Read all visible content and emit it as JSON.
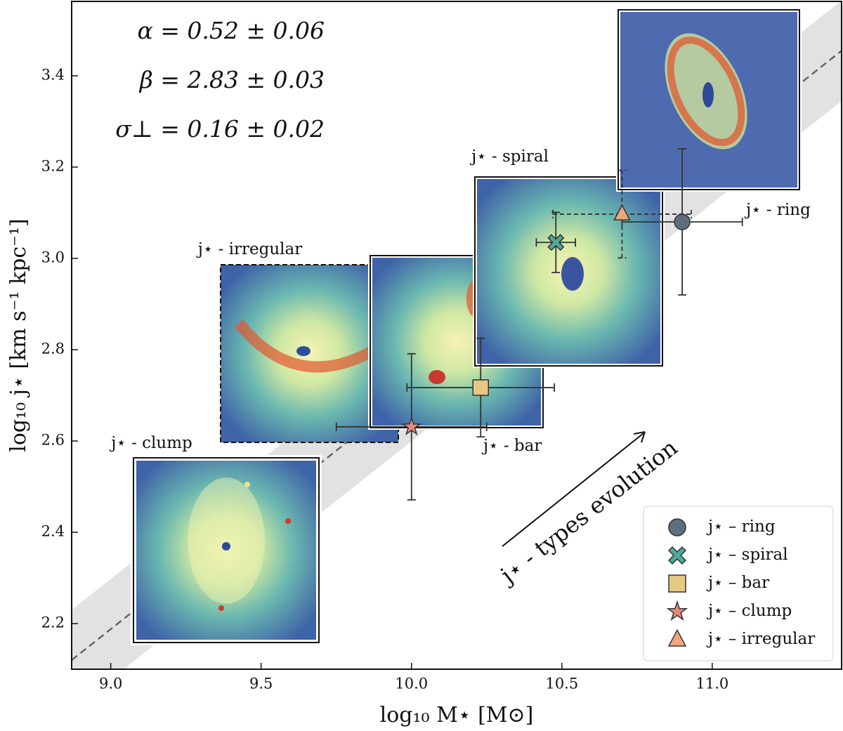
{
  "chart_data": {
    "type": "scatter",
    "xlabel": "log₁₀ M⋆ [M⊙]",
    "ylabel": "log₁₀ j⋆ [km s⁻¹ kpc⁻¹]",
    "xlim": [
      8.87,
      11.43
    ],
    "ylim": [
      2.1,
      3.563
    ],
    "xticks": [
      {
        "value": 9,
        "label": "9.0"
      },
      9.5,
      {
        "value": 10,
        "label": "10.0"
      },
      10.5,
      {
        "value": 11,
        "label": "11.0"
      }
    ],
    "yticks": [
      2.2,
      2.4,
      2.6,
      2.8,
      {
        "value": 3,
        "label": "3.0"
      },
      3.2,
      3.4
    ],
    "annotations": [
      "α = 0.52 ± 0.06",
      "β = 2.83 ± 0.03",
      "σ⊥ = 0.16 ± 0.02"
    ],
    "arrow_label": "j⋆ - types evolution",
    "fit_line": {
      "x": [
        8.87,
        11.43
      ],
      "y": [
        2.12,
        3.455
      ],
      "color": "#666666",
      "band": 0.11
    },
    "image_labels": [
      "j⋆ - ring",
      "j⋆ - spiral",
      "j⋆ - bar",
      "j⋆ - clump",
      "j⋆ - irregular"
    ],
    "legend": "lower right",
    "series": [
      {
        "name": "j⋆ – ring",
        "marker": "circle",
        "color": "#5d6e7c",
        "x": [
          10.9
        ],
        "values": [
          3.08
        ],
        "xerr": [
          0.2
        ],
        "yerr": [
          0.16
        ]
      },
      {
        "name": "j⋆ – spiral",
        "marker": "x",
        "color": "#4fa89c",
        "x": [
          10.48
        ],
        "values": [
          3.035
        ],
        "xerr": [
          0.065
        ],
        "yerr": [
          0.066
        ]
      },
      {
        "name": "j⋆ – bar",
        "marker": "square",
        "color": "#e6c882",
        "x": [
          10.23
        ],
        "values": [
          2.717
        ],
        "xerr": [
          0.245
        ],
        "yerr": [
          0.108
        ]
      },
      {
        "name": "j⋆ – clump",
        "marker": "star",
        "color": "#e58a78",
        "x": [
          10.0
        ],
        "values": [
          2.631
        ],
        "xerr": [
          0.25
        ],
        "yerr": [
          0.16
        ]
      },
      {
        "name": "j⋆ – irregular",
        "marker": "triangle",
        "color": "#f0a67c",
        "x": [
          10.7
        ],
        "values": [
          3.097
        ],
        "xerr": [
          0.23
        ],
        "yerr": [
          0.096
        ],
        "dashed": true
      }
    ]
  }
}
